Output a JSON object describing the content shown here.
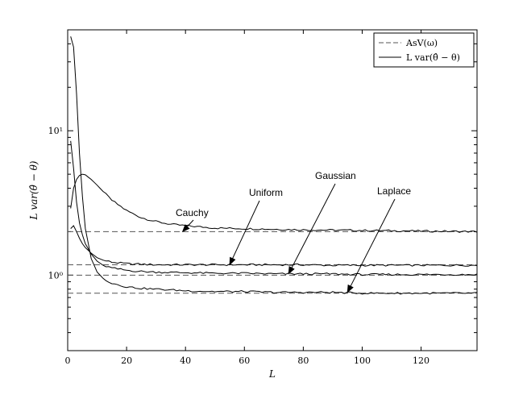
{
  "chart_data": {
    "type": "line",
    "x_label": "L",
    "y_label": "L var(θ̂ − θ)",
    "xlim": [
      0,
      139
    ],
    "ylim": [
      0.3,
      50
    ],
    "y_scale": "log",
    "x_ticks": [
      0,
      20,
      40,
      60,
      80,
      100,
      120
    ],
    "y_ticks": [
      {
        "value": 1,
        "label": "10⁰"
      },
      {
        "value": 10,
        "label": "10¹"
      }
    ],
    "grid": false,
    "legend_position": "top-right",
    "legend": [
      {
        "label": "AsV(ω)",
        "style": "dashed"
      },
      {
        "label": "L var(θ̂ − θ)",
        "style": "solid"
      }
    ],
    "asymptotes": [
      {
        "distribution": "Cauchy",
        "value": 2.0
      },
      {
        "distribution": "Uniform",
        "value": 1.18
      },
      {
        "distribution": "Gaussian",
        "value": 1.0
      },
      {
        "distribution": "Laplace",
        "value": 0.75
      }
    ],
    "series": [
      {
        "name": "Cauchy",
        "x": [
          1,
          2,
          3,
          4,
          5,
          6,
          8,
          10,
          12,
          15,
          20,
          25,
          30,
          35,
          40,
          50,
          60,
          70,
          80,
          90,
          100,
          110,
          120,
          130,
          139
        ],
        "y": [
          2.9,
          4.0,
          4.6,
          4.9,
          5.0,
          4.95,
          4.6,
          4.2,
          3.8,
          3.3,
          2.8,
          2.5,
          2.35,
          2.25,
          2.2,
          2.12,
          2.1,
          2.08,
          2.06,
          2.05,
          2.04,
          2.03,
          2.02,
          2.01,
          2.0
        ]
      },
      {
        "name": "Uniform",
        "x": [
          1,
          2,
          3,
          4,
          5,
          6,
          8,
          10,
          12,
          15,
          20,
          25,
          30,
          40,
          50,
          60,
          70,
          80,
          90,
          100,
          110,
          120,
          130,
          139
        ],
        "y": [
          2.1,
          2.2,
          2.0,
          1.8,
          1.65,
          1.55,
          1.42,
          1.32,
          1.27,
          1.23,
          1.2,
          1.19,
          1.18,
          1.18,
          1.18,
          1.18,
          1.18,
          1.18,
          1.17,
          1.17,
          1.17,
          1.17,
          1.17,
          1.17
        ]
      },
      {
        "name": "Gaussian",
        "x": [
          1,
          2,
          3,
          4,
          5,
          6,
          8,
          10,
          12,
          15,
          20,
          25,
          30,
          40,
          50,
          60,
          70,
          80,
          90,
          100,
          110,
          120,
          130,
          139
        ],
        "y": [
          8.5,
          5.5,
          3.2,
          2.3,
          1.9,
          1.65,
          1.4,
          1.25,
          1.17,
          1.12,
          1.08,
          1.06,
          1.05,
          1.04,
          1.03,
          1.03,
          1.02,
          1.02,
          1.02,
          1.01,
          1.01,
          1.01,
          1.01,
          1.01
        ]
      },
      {
        "name": "Laplace",
        "x": [
          1,
          2,
          3,
          4,
          5,
          6,
          8,
          10,
          12,
          15,
          20,
          25,
          30,
          40,
          50,
          60,
          70,
          80,
          90,
          100,
          110,
          120,
          130,
          139
        ],
        "y": [
          45,
          38,
          18,
          7.0,
          3.5,
          2.1,
          1.3,
          1.05,
          0.95,
          0.88,
          0.83,
          0.81,
          0.8,
          0.78,
          0.77,
          0.77,
          0.76,
          0.76,
          0.76,
          0.75,
          0.75,
          0.75,
          0.75,
          0.75
        ]
      }
    ],
    "annotations": [
      {
        "text": "Cauchy",
        "points_to": [
          39,
          2.0
        ]
      },
      {
        "text": "Uniform",
        "points_to": [
          55,
          1.18
        ]
      },
      {
        "text": "Gaussian",
        "points_to": [
          75,
          1.02
        ]
      },
      {
        "text": "Laplace",
        "points_to": [
          95,
          0.76
        ]
      }
    ]
  }
}
